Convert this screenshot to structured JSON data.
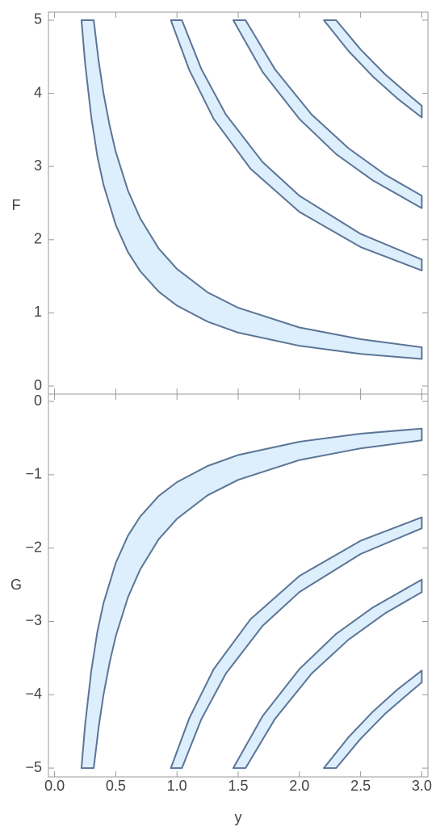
{
  "chart_data": [
    {
      "type": "region",
      "ylabel": "F",
      "xlim": [
        -0.05,
        3.05
      ],
      "ylim": [
        -0.11,
        5.11
      ],
      "yticks": [
        0,
        1,
        2,
        3,
        4,
        5
      ],
      "fill": "#ddeefc",
      "color": "#5b7596",
      "series": [
        {
          "lower": {
            "x": [
              0.22,
              0.25,
              0.3,
              0.35,
              0.4,
              0.5,
              0.6,
              0.7,
              0.85,
              1,
              1.25,
              1.5,
              2,
              2.5,
              3
            ],
            "values": [
              5,
              4.4,
              3.67,
              3.14,
              2.75,
              2.2,
              1.83,
              1.57,
              1.29,
              1.1,
              0.88,
              0.73,
              0.55,
              0.44,
              0.37
            ]
          },
          "upper": {
            "x": [
              0.32,
              0.36,
              0.4,
              0.45,
              0.5,
              0.6,
              0.7,
              0.85,
              1,
              1.25,
              1.5,
              2,
              2.5,
              3
            ],
            "values": [
              5,
              4.44,
              4,
              3.56,
              3.2,
              2.67,
              2.29,
              1.88,
              1.6,
              1.28,
              1.07,
              0.8,
              0.64,
              0.53
            ]
          }
        },
        {
          "lower": {
            "x": [
              0.95,
              1.1,
              1.3,
              1.6,
              2,
              2.5,
              3
            ],
            "values": [
              5,
              4.32,
              3.65,
              2.97,
              2.38,
              1.9,
              1.58
            ]
          },
          "upper": {
            "x": [
              1.04,
              1.2,
              1.4,
              1.7,
              2,
              2.5,
              3
            ],
            "values": [
              5,
              4.33,
              3.71,
              3.06,
              2.6,
              2.08,
              1.73
            ]
          }
        },
        {
          "lower": {
            "x": [
              1.46,
              1.7,
              2,
              2.3,
              2.6,
              3
            ],
            "values": [
              5,
              4.29,
              3.65,
              3.17,
              2.81,
              2.43
            ]
          },
          "upper": {
            "x": [
              1.56,
              1.8,
              2.1,
              2.4,
              2.7,
              3
            ],
            "values": [
              5,
              4.33,
              3.71,
              3.25,
              2.89,
              2.6
            ]
          }
        },
        {
          "lower": {
            "x": [
              2.2,
              2.4,
              2.6,
              2.8,
              3
            ],
            "values": [
              5,
              4.58,
              4.23,
              3.93,
              3.67
            ]
          },
          "upper": {
            "x": [
              2.3,
              2.5,
              2.7,
              2.9,
              3
            ],
            "values": [
              5,
              4.6,
              4.26,
              3.97,
              3.83
            ]
          }
        }
      ]
    },
    {
      "type": "region",
      "ylabel": "G",
      "xlabel": "y",
      "xlim": [
        -0.05,
        3.05
      ],
      "ylim": [
        -5.12,
        0.1
      ],
      "xticks": [
        {
          "value": 0,
          "label": "0.0"
        },
        0.5,
        {
          "value": 1,
          "label": "1.0"
        },
        1.5,
        {
          "value": 2,
          "label": "2.0"
        },
        2.5,
        {
          "value": 3,
          "label": "3.0"
        }
      ],
      "yticks": [
        {
          "value": 0,
          "label": "0"
        },
        {
          "value": -1,
          "label": "−1"
        },
        {
          "value": -2,
          "label": "−2"
        },
        {
          "value": -3,
          "label": "−3"
        },
        {
          "value": -4,
          "label": "−4"
        },
        {
          "value": -5,
          "label": "−5"
        }
      ],
      "fill": "#ddeefc",
      "color": "#5b7596",
      "series": [
        {
          "lower": {
            "x": [
              0.22,
              0.25,
              0.3,
              0.35,
              0.4,
              0.5,
              0.6,
              0.7,
              0.85,
              1,
              1.25,
              1.5,
              2,
              2.5,
              3
            ],
            "values": [
              -5,
              -4.4,
              -3.67,
              -3.14,
              -2.75,
              -2.2,
              -1.83,
              -1.57,
              -1.29,
              -1.1,
              -0.88,
              -0.73,
              -0.55,
              -0.44,
              -0.37
            ]
          },
          "upper": {
            "x": [
              0.32,
              0.36,
              0.4,
              0.45,
              0.5,
              0.6,
              0.7,
              0.85,
              1,
              1.25,
              1.5,
              2,
              2.5,
              3
            ],
            "values": [
              -5,
              -4.44,
              -4,
              -3.56,
              -3.2,
              -2.67,
              -2.29,
              -1.88,
              -1.6,
              -1.28,
              -1.07,
              -0.8,
              -0.64,
              -0.53
            ]
          }
        },
        {
          "lower": {
            "x": [
              0.95,
              1.1,
              1.3,
              1.6,
              2,
              2.5,
              3
            ],
            "values": [
              -5,
              -4.32,
              -3.65,
              -2.97,
              -2.38,
              -1.9,
              -1.58
            ]
          },
          "upper": {
            "x": [
              1.04,
              1.2,
              1.4,
              1.7,
              2,
              2.5,
              3
            ],
            "values": [
              -5,
              -4.33,
              -3.71,
              -3.06,
              -2.6,
              -2.08,
              -1.73
            ]
          }
        },
        {
          "lower": {
            "x": [
              1.46,
              1.7,
              2,
              2.3,
              2.6,
              3
            ],
            "values": [
              -5,
              -4.29,
              -3.65,
              -3.17,
              -2.81,
              -2.43
            ]
          },
          "upper": {
            "x": [
              1.56,
              1.8,
              2.1,
              2.4,
              2.7,
              3
            ],
            "values": [
              -5,
              -4.33,
              -3.71,
              -3.25,
              -2.89,
              -2.6
            ]
          }
        },
        {
          "lower": {
            "x": [
              2.2,
              2.4,
              2.6,
              2.8,
              3
            ],
            "values": [
              -5,
              -4.58,
              -4.23,
              -3.93,
              -3.67
            ]
          },
          "upper": {
            "x": [
              2.3,
              2.5,
              2.7,
              2.9,
              3
            ],
            "values": [
              -5,
              -4.6,
              -4.26,
              -3.97,
              -3.83
            ]
          }
        }
      ]
    }
  ]
}
